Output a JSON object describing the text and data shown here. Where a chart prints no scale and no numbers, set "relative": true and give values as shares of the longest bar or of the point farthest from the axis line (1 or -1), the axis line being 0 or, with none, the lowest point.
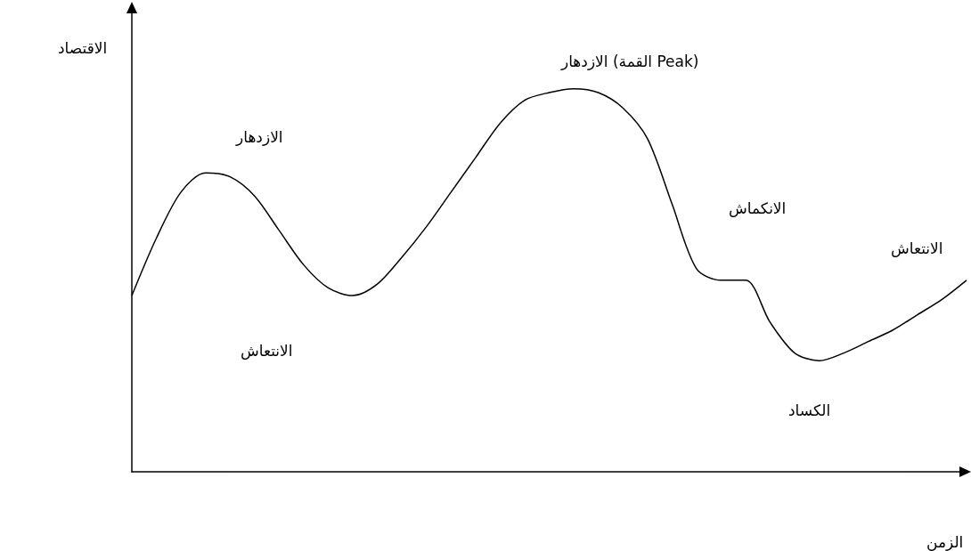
{
  "chart_data": {
    "type": "line",
    "relative": true,
    "xlabel": "الزمن",
    "ylabel": "الاقتصاد",
    "color": "#000000",
    "marker": "none",
    "grid": false,
    "categories": [
      null,
      null,
      null,
      null,
      null,
      null,
      null,
      null,
      null,
      null,
      null,
      null,
      null,
      null,
      null,
      null,
      null,
      null,
      null,
      null,
      null,
      null,
      null,
      null,
      null,
      null,
      null,
      null,
      null,
      null,
      null,
      null,
      null,
      null,
      null
    ],
    "values": [
      0.46,
      0.61,
      0.73,
      0.78,
      0.77,
      0.72,
      0.63,
      0.54,
      0.48,
      0.46,
      0.49,
      0.56,
      0.64,
      0.73,
      0.82,
      0.91,
      0.97,
      0.99,
      1,
      0.99,
      0.95,
      0.87,
      0.7,
      0.53,
      0.5,
      0.5,
      0.39,
      0.31,
      0.29,
      0.31,
      0.34,
      0.37,
      0.41,
      0.45,
      0.5
    ],
    "annotations": [
      "الازدهار",
      "الانتعاش",
      "الازدهار (القمة Peak)",
      "الانكماش",
      "الكساد",
      "الانتعاش"
    ]
  }
}
